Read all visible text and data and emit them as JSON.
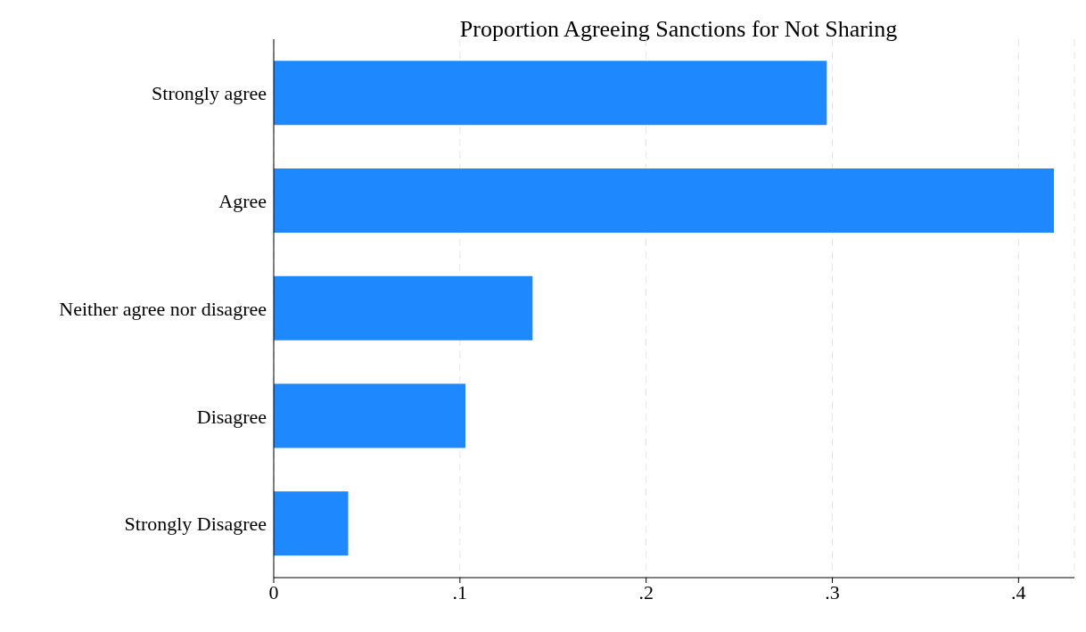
{
  "chart_data": {
    "type": "bar",
    "orientation": "horizontal",
    "title": "Proportion Agreeing Sanctions for Not Sharing",
    "categories": [
      "Strongly agree",
      "Agree",
      "Neither agree nor disagree",
      "Disagree",
      "Strongly Disagree"
    ],
    "values": [
      0.297,
      0.419,
      0.139,
      0.103,
      0.04
    ],
    "color": "#1e88ff",
    "xlim": [
      0,
      0.43
    ],
    "xticks": [
      0,
      {
        "value": 0.1,
        "label": ".1"
      },
      {
        "value": 0.2,
        "label": ".2"
      },
      {
        "value": 0.3,
        "label": ".3"
      },
      {
        "value": 0.4,
        "label": ".4"
      }
    ],
    "grid": "x"
  }
}
